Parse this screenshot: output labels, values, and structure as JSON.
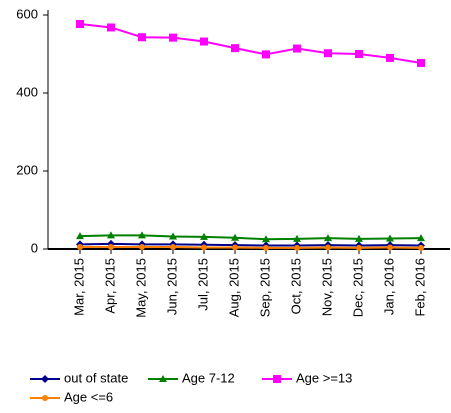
{
  "chart_data": {
    "type": "line",
    "categories": [
      "Mar, 2015",
      "Apr, 2015",
      "May, 2015",
      "Jun, 2015",
      "Jul, 2015",
      "Aug, 2015",
      "Sep, 2015",
      "Oct, 2015",
      "Nov, 2015",
      "Dec, 2015",
      "Jan, 2016",
      "Feb, 2016"
    ],
    "series": [
      {
        "name": "out of state",
        "color": "#00008b",
        "marker": "diamond",
        "values": [
          12,
          13,
          12,
          12,
          11,
          10,
          9,
          9,
          10,
          9,
          10,
          9
        ]
      },
      {
        "name": "Age 7-12",
        "color": "#008000",
        "marker": "triangle",
        "values": [
          33,
          35,
          35,
          32,
          31,
          29,
          25,
          26,
          28,
          26,
          27,
          28
        ]
      },
      {
        "name": "Age >=13",
        "color": "#ff00ff",
        "marker": "square",
        "values": [
          577,
          568,
          543,
          542,
          532,
          515,
          499,
          514,
          502,
          500,
          490,
          477
        ]
      },
      {
        "name": "Age <=6",
        "color": "#ff7f00",
        "marker": "circle",
        "values": [
          5,
          5,
          5,
          5,
          4,
          4,
          3,
          3,
          4,
          3,
          4,
          3
        ]
      }
    ],
    "ylim": [
      0,
      600
    ],
    "yticks": [
      0,
      200,
      400,
      600
    ],
    "grid": false
  }
}
